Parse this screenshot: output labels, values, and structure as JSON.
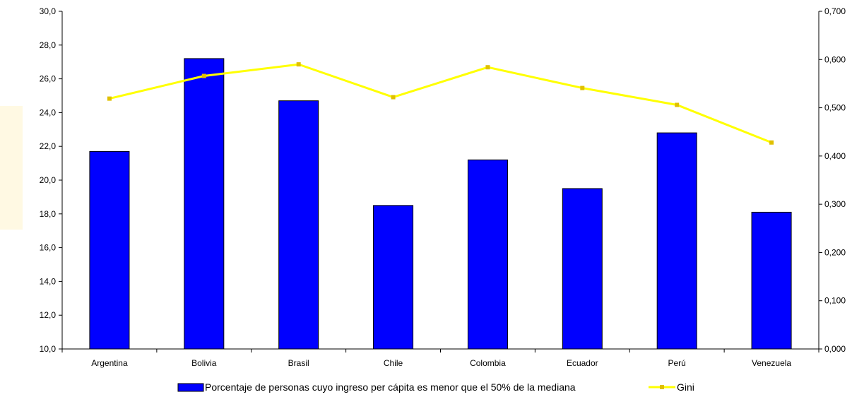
{
  "colors": {
    "bar_fill": "#0000FF",
    "bar_stroke": "#000000",
    "line": "#FFFF00",
    "marker": "#E0C000",
    "axis": "#000000",
    "background": "#FFFFFF",
    "watermark": "#FFF8DC"
  },
  "chart_data": {
    "type": "bar",
    "categories": [
      "Argentina",
      "Bolivia",
      "Brasil",
      "Chile",
      "Colombia",
      "Ecuador",
      "Perú",
      "Venezuela"
    ],
    "series": [
      {
        "name": "Porcentaje de personas cuyo ingreso per cápita es menor que el 50% de la mediana",
        "type": "bar",
        "axis": "left",
        "values": [
          21.7,
          27.2,
          24.7,
          18.5,
          21.2,
          19.5,
          22.8,
          18.1
        ]
      },
      {
        "name": "Gini",
        "type": "line",
        "axis": "right",
        "values": [
          0.519,
          0.566,
          0.59,
          0.522,
          0.584,
          0.541,
          0.506,
          0.428
        ]
      }
    ],
    "y_left": {
      "ylim": [
        10,
        30
      ],
      "ticks": [
        "10,0",
        "12,0",
        "14,0",
        "16,0",
        "18,0",
        "20,0",
        "22,0",
        "24,0",
        "26,0",
        "28,0",
        "30,0"
      ]
    },
    "y_right": {
      "ylim": [
        0,
        0.7
      ],
      "ticks": [
        "0,000",
        "0,100",
        "0,200",
        "0,300",
        "0,400",
        "0,500",
        "0,600",
        "0,700"
      ]
    },
    "title": "",
    "xlabel": "",
    "grid": false,
    "legend_position": "bottom"
  }
}
